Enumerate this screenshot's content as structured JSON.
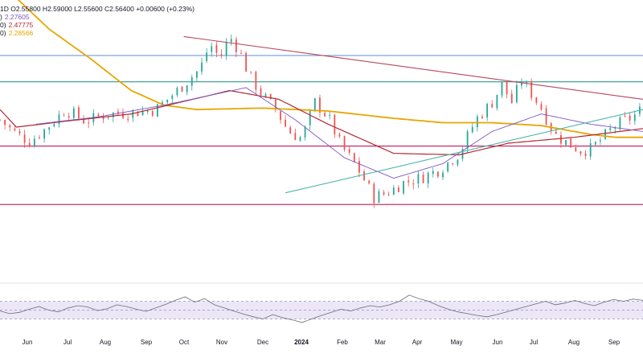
{
  "legend": {
    "ohlc": "1D O2.55800 H2.59000 L2.55600 C2.56400 +0.00600 (+0.23%)",
    "ma_lines": [
      {
        "label": ")",
        "value": "2.27605",
        "color": "#7e57c2"
      },
      {
        "label": "0)",
        "value": "2.47775",
        "color": "#b22833"
      },
      {
        "label": "0)",
        "value": "2.28566",
        "color": "#e8a500"
      }
    ]
  },
  "colors": {
    "up": "#26a69a",
    "down": "#ef5350",
    "ma_fast": "#7e57c2",
    "ma_mid": "#b22833",
    "ma_slow": "#e8a500",
    "hline_blue": "#5b8fd1",
    "hline_teal": "#2e9c8a",
    "hline_magenta": "#c2185b",
    "trend_line": "#b5485e",
    "rising_trend": "#4db6ac",
    "rsi_line": "#6a6d78",
    "rsi_band": "#ece6f8"
  },
  "chart_data": {
    "type": "candlestick",
    "title": "",
    "x_tick_labels": [
      "Jun",
      "Jul",
      "Aug",
      "Sep",
      "Oct",
      "Nov",
      "Dec",
      "2024",
      "Feb",
      "Mar",
      "Apr",
      "May",
      "Jun",
      "Jul",
      "Aug",
      "Sep"
    ],
    "price_range": [
      1.4,
      3.3
    ],
    "horizontal_levels": [
      2.92,
      2.74,
      2.3,
      1.9
    ],
    "price_path": [
      [
        0,
        2.48
      ],
      [
        8,
        2.4
      ],
      [
        18,
        2.33
      ],
      [
        28,
        2.42
      ],
      [
        40,
        2.55
      ],
      [
        52,
        2.47
      ],
      [
        66,
        2.52
      ],
      [
        80,
        2.53
      ],
      [
        95,
        2.55
      ],
      [
        110,
        2.7
      ],
      [
        122,
        2.83
      ],
      [
        128,
        3.0
      ],
      [
        134,
        2.9
      ],
      [
        140,
        3.05
      ],
      [
        146,
        2.95
      ],
      [
        152,
        2.78
      ],
      [
        160,
        2.65
      ],
      [
        168,
        2.55
      ],
      [
        176,
        2.4
      ],
      [
        184,
        2.35
      ],
      [
        192,
        2.6
      ],
      [
        200,
        2.5
      ],
      [
        208,
        2.3
      ],
      [
        218,
        2.15
      ],
      [
        228,
        1.95
      ],
      [
        236,
        1.98
      ],
      [
        246,
        2.05
      ],
      [
        256,
        2.08
      ],
      [
        268,
        2.14
      ],
      [
        280,
        2.25
      ],
      [
        290,
        2.48
      ],
      [
        300,
        2.6
      ],
      [
        306,
        2.72
      ],
      [
        312,
        2.6
      ],
      [
        318,
        2.75
      ],
      [
        324,
        2.66
      ],
      [
        330,
        2.56
      ],
      [
        338,
        2.38
      ],
      [
        346,
        2.32
      ],
      [
        354,
        2.27
      ],
      [
        360,
        2.28
      ],
      [
        368,
        2.36
      ],
      [
        374,
        2.43
      ],
      [
        380,
        2.47
      ],
      [
        386,
        2.5
      ],
      [
        392,
        2.56
      ]
    ],
    "ma_fast_path": [
      [
        22,
        2.45
      ],
      [
        60,
        2.5
      ],
      [
        100,
        2.58
      ],
      [
        150,
        2.7
      ],
      [
        180,
        2.48
      ],
      [
        210,
        2.22
      ],
      [
        240,
        2.08
      ],
      [
        270,
        2.18
      ],
      [
        300,
        2.4
      ],
      [
        330,
        2.52
      ],
      [
        360,
        2.45
      ],
      [
        392,
        2.4
      ]
    ],
    "ma_mid_path": [
      [
        0,
        2.55
      ],
      [
        10,
        2.43
      ],
      [
        40,
        2.47
      ],
      [
        80,
        2.52
      ],
      [
        110,
        2.6
      ],
      [
        140,
        2.68
      ],
      [
        170,
        2.62
      ],
      [
        200,
        2.45
      ],
      [
        240,
        2.25
      ],
      [
        280,
        2.24
      ],
      [
        310,
        2.32
      ],
      [
        350,
        2.36
      ],
      [
        392,
        2.42
      ]
    ],
    "ma_slow_path": [
      [
        0,
        3.42
      ],
      [
        30,
        3.1
      ],
      [
        55,
        2.9
      ],
      [
        80,
        2.68
      ],
      [
        100,
        2.58
      ],
      [
        120,
        2.55
      ],
      [
        160,
        2.56
      ],
      [
        200,
        2.54
      ],
      [
        240,
        2.49
      ],
      [
        270,
        2.46
      ],
      [
        300,
        2.46
      ],
      [
        330,
        2.44
      ],
      [
        360,
        2.38
      ],
      [
        375,
        2.36
      ],
      [
        392,
        2.36
      ]
    ],
    "trend_lines": [
      {
        "from": [
          112,
          3.05
        ],
        "to": [
          392,
          2.62
        ]
      },
      {
        "from": [
          174,
          1.98
        ],
        "to": [
          392,
          2.55
        ]
      }
    ],
    "rsi": {
      "range": [
        0,
        100
      ],
      "band": [
        30,
        70
      ],
      "midline": 50,
      "values": [
        48,
        42,
        45,
        52,
        58,
        50,
        46,
        55,
        60,
        57,
        49,
        53,
        62,
        58,
        52,
        47,
        55,
        63,
        72,
        80,
        68,
        76,
        62,
        55,
        48,
        41,
        35,
        30,
        40,
        33,
        28,
        22,
        30,
        38,
        45,
        52,
        48,
        55,
        60,
        57,
        62,
        70,
        84,
        76,
        70,
        60,
        52,
        46,
        42,
        38,
        35,
        40,
        46,
        52,
        58,
        64,
        70,
        62,
        66,
        72,
        65,
        60,
        68,
        74,
        70,
        75,
        72
      ]
    }
  }
}
